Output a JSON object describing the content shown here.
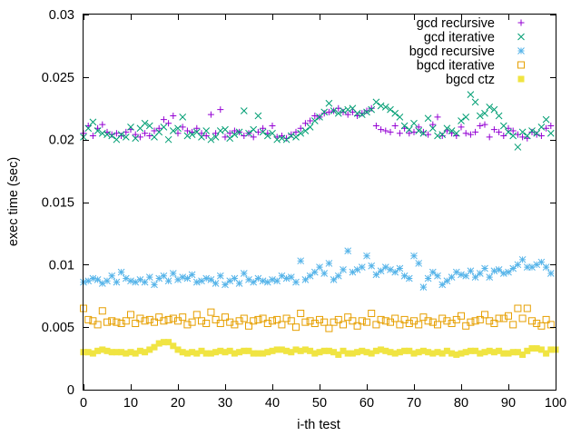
{
  "chart_data": {
    "type": "scatter",
    "title": "",
    "xlabel": "i-th test",
    "ylabel": "exec time (sec)",
    "xlim": [
      0,
      100
    ],
    "ylim": [
      0,
      0.03
    ],
    "xticks": [
      0,
      10,
      20,
      30,
      40,
      50,
      60,
      70,
      80,
      90,
      100
    ],
    "xtick_labels": [
      "0",
      "10",
      "20",
      "30",
      "40",
      "50",
      "60",
      "70",
      "80",
      "90",
      "100"
    ],
    "yticks": [
      0,
      0.005,
      0.01,
      0.015,
      0.02,
      0.025,
      0.03
    ],
    "ytick_labels": [
      "0",
      "0.005",
      "0.01",
      "0.015",
      "0.02",
      "0.025",
      "0.03"
    ],
    "grid": false,
    "legend_position": "top-right",
    "series": [
      {
        "name": "gcd recursive",
        "marker": "plus",
        "color": "#9400d3",
        "values": [
          0.0205,
          0.0211,
          0.0203,
          0.0209,
          0.0212,
          0.0206,
          0.0204,
          0.0205,
          0.0203,
          0.0206,
          0.0208,
          0.0204,
          0.0202,
          0.0205,
          0.0203,
          0.0207,
          0.0209,
          0.0216,
          0.0213,
          0.0219,
          0.0205,
          0.021,
          0.0207,
          0.0206,
          0.0209,
          0.0205,
          0.0203,
          0.022,
          0.0205,
          0.0224,
          0.0202,
          0.0205,
          0.0207,
          0.0206,
          0.0203,
          0.0205,
          0.0202,
          0.0206,
          0.0209,
          0.0205,
          0.0211,
          0.0202,
          0.0203,
          0.0201,
          0.0204,
          0.0206,
          0.0209,
          0.0213,
          0.0215,
          0.0219,
          0.0218,
          0.0221,
          0.0222,
          0.0223,
          0.0225,
          0.0222,
          0.022,
          0.0222,
          0.0219,
          0.0221,
          0.0223,
          0.0225,
          0.0211,
          0.0208,
          0.0207,
          0.0206,
          0.0211,
          0.0205,
          0.0209,
          0.0205,
          0.0206,
          0.021,
          0.0206,
          0.0204,
          0.0212,
          0.0218,
          0.0203,
          0.0207,
          0.0205,
          0.0203,
          0.021,
          0.0205,
          0.0204,
          0.0206,
          0.0211,
          0.0212,
          0.0202,
          0.0208,
          0.0206,
          0.0203,
          0.0209,
          0.0207,
          0.0204,
          0.0202,
          0.0201,
          0.0206,
          0.0204,
          0.0203,
          0.0209,
          0.0211
        ]
      },
      {
        "name": "gcd iterative",
        "marker": "cross",
        "color": "#009e73",
        "values": [
          0.0202,
          0.0209,
          0.0214,
          0.0207,
          0.0205,
          0.0204,
          0.0203,
          0.02,
          0.0204,
          0.0202,
          0.021,
          0.0201,
          0.0209,
          0.0213,
          0.0211,
          0.0202,
          0.0206,
          0.021,
          0.02,
          0.0207,
          0.0209,
          0.0218,
          0.0203,
          0.0204,
          0.0206,
          0.0202,
          0.0207,
          0.02,
          0.0202,
          0.0207,
          0.0208,
          0.0201,
          0.0204,
          0.0206,
          0.0223,
          0.0205,
          0.0208,
          0.0219,
          0.0206,
          0.0203,
          0.0205,
          0.02,
          0.0201,
          0.02,
          0.0203,
          0.0202,
          0.0205,
          0.0207,
          0.021,
          0.0215,
          0.0218,
          0.0222,
          0.0229,
          0.0223,
          0.0221,
          0.0223,
          0.0224,
          0.0225,
          0.0221,
          0.022,
          0.0222,
          0.0224,
          0.023,
          0.0227,
          0.0226,
          0.0224,
          0.0221,
          0.0218,
          0.0211,
          0.0208,
          0.0213,
          0.0207,
          0.0205,
          0.0217,
          0.0209,
          0.0203,
          0.0204,
          0.0209,
          0.0207,
          0.0205,
          0.0215,
          0.0218,
          0.0236,
          0.023,
          0.0219,
          0.0221,
          0.0226,
          0.0224,
          0.0219,
          0.0211,
          0.0206,
          0.0203,
          0.0194,
          0.0206,
          0.0203,
          0.0207,
          0.0205,
          0.021,
          0.0216,
          0.0205
        ]
      },
      {
        "name": "bgcd recursive",
        "marker": "star",
        "color": "#56b4e9",
        "values": [
          0.0086,
          0.0087,
          0.0089,
          0.0088,
          0.0085,
          0.0087,
          0.0091,
          0.0086,
          0.0094,
          0.0089,
          0.0087,
          0.0086,
          0.0088,
          0.0086,
          0.009,
          0.0084,
          0.0089,
          0.0091,
          0.0087,
          0.0093,
          0.0088,
          0.009,
          0.0089,
          0.0092,
          0.0086,
          0.0087,
          0.0089,
          0.0088,
          0.0085,
          0.0091,
          0.0084,
          0.0087,
          0.0089,
          0.0085,
          0.0093,
          0.0088,
          0.0086,
          0.0089,
          0.0087,
          0.0086,
          0.0088,
          0.0087,
          0.0091,
          0.0089,
          0.009,
          0.0086,
          0.0103,
          0.0088,
          0.0091,
          0.0094,
          0.0098,
          0.0093,
          0.0101,
          0.0088,
          0.0091,
          0.0096,
          0.0111,
          0.0094,
          0.0096,
          0.0098,
          0.0107,
          0.0099,
          0.0092,
          0.0095,
          0.0098,
          0.0096,
          0.0094,
          0.0097,
          0.0091,
          0.0089,
          0.0107,
          0.0101,
          0.0082,
          0.0089,
          0.0094,
          0.0091,
          0.0084,
          0.0087,
          0.009,
          0.0094,
          0.0092,
          0.0091,
          0.0095,
          0.009,
          0.0093,
          0.0097,
          0.009,
          0.0095,
          0.0096,
          0.0093,
          0.0094,
          0.0097,
          0.01,
          0.0104,
          0.0098,
          0.0098,
          0.01,
          0.0102,
          0.0098,
          0.0093
        ]
      },
      {
        "name": "bgcd iterative",
        "marker": "open-square",
        "color": "#e69f00",
        "values": [
          0.0065,
          0.0056,
          0.0055,
          0.0052,
          0.0063,
          0.0054,
          0.0055,
          0.0054,
          0.0053,
          0.0055,
          0.006,
          0.0053,
          0.0057,
          0.0055,
          0.0056,
          0.0054,
          0.0058,
          0.0055,
          0.0056,
          0.0057,
          0.0055,
          0.0058,
          0.0052,
          0.0054,
          0.006,
          0.0055,
          0.0053,
          0.0062,
          0.0056,
          0.0053,
          0.0058,
          0.0054,
          0.0052,
          0.0055,
          0.0057,
          0.0051,
          0.0055,
          0.0056,
          0.0057,
          0.0053,
          0.0055,
          0.0056,
          0.0052,
          0.0057,
          0.0055,
          0.005,
          0.0061,
          0.0054,
          0.0055,
          0.0053,
          0.0056,
          0.0054,
          0.0049,
          0.0054,
          0.0056,
          0.0052,
          0.0058,
          0.0055,
          0.0051,
          0.0055,
          0.0054,
          0.0061,
          0.0052,
          0.0056,
          0.0055,
          0.0054,
          0.0057,
          0.0052,
          0.0056,
          0.0053,
          0.0055,
          0.0052,
          0.0058,
          0.0055,
          0.0054,
          0.0052,
          0.0057,
          0.0055,
          0.0053,
          0.0056,
          0.0059,
          0.0051,
          0.0054,
          0.0055,
          0.0056,
          0.006,
          0.0055,
          0.0053,
          0.0057,
          0.0057,
          0.0059,
          0.0052,
          0.0065,
          0.0057,
          0.0065,
          0.0055,
          0.0053,
          0.0051,
          0.0056,
          0.0052
        ]
      },
      {
        "name": "bgcd ctz",
        "marker": "filled-square",
        "color": "#f0e442",
        "values": [
          0.003,
          0.003,
          0.0029,
          0.0031,
          0.0032,
          0.0031,
          0.003,
          0.003,
          0.003,
          0.0029,
          0.003,
          0.0029,
          0.0031,
          0.003,
          0.0032,
          0.0034,
          0.0037,
          0.0038,
          0.0038,
          0.0035,
          0.0032,
          0.003,
          0.0029,
          0.003,
          0.0029,
          0.0031,
          0.0029,
          0.0029,
          0.003,
          0.0031,
          0.003,
          0.0031,
          0.0029,
          0.003,
          0.0031,
          0.0031,
          0.0029,
          0.0029,
          0.0029,
          0.003,
          0.0031,
          0.0032,
          0.0032,
          0.0031,
          0.003,
          0.0032,
          0.0031,
          0.0032,
          0.0031,
          0.0029,
          0.003,
          0.0031,
          0.0031,
          0.003,
          0.0028,
          0.0031,
          0.0029,
          0.0029,
          0.003,
          0.0031,
          0.003,
          0.0029,
          0.0031,
          0.0032,
          0.0031,
          0.003,
          0.0029,
          0.003,
          0.0031,
          0.0031,
          0.0029,
          0.003,
          0.0031,
          0.003,
          0.0029,
          0.003,
          0.0029,
          0.0031,
          0.0029,
          0.0028,
          0.0029,
          0.003,
          0.0031,
          0.0031,
          0.0029,
          0.003,
          0.0031,
          0.003,
          0.0031,
          0.0029,
          0.0029,
          0.003,
          0.003,
          0.0028,
          0.0031,
          0.0033,
          0.0033,
          0.0032,
          0.0029,
          0.0032,
          0.0032
        ]
      }
    ]
  }
}
